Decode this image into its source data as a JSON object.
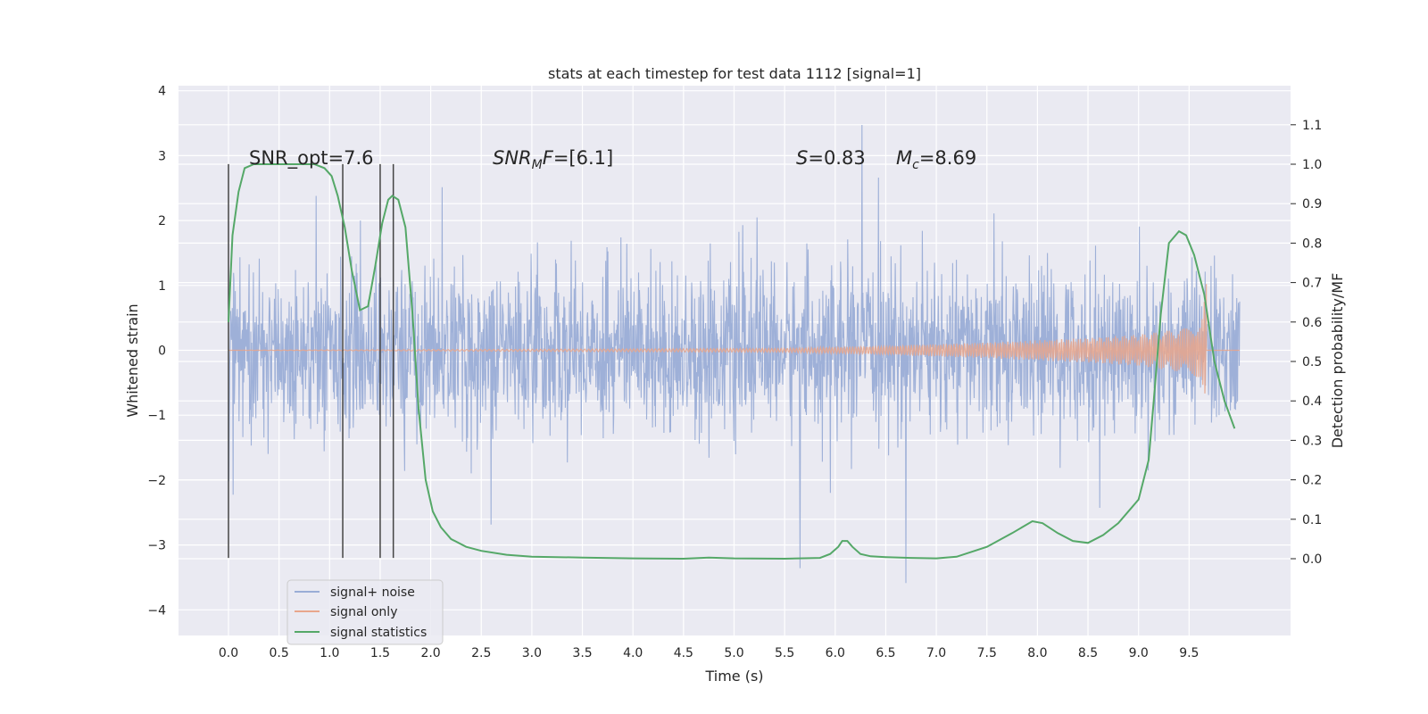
{
  "chart_data": {
    "type": "line",
    "title": "stats at each timestep for test data 1112 [signal=1]",
    "xlabel": "Time (s)",
    "ylabel": "Whitened strain",
    "ylabel_right": "Detection probability/MF",
    "xlim": [
      -0.5,
      10.5
    ],
    "ylim": [
      -4.4,
      4.1
    ],
    "ylim_right": [
      -0.2,
      1.2
    ],
    "x_ticks": [
      "0.0",
      "0.5",
      "1.0",
      "1.5",
      "2.0",
      "2.5",
      "3.0",
      "3.5",
      "4.0",
      "4.5",
      "5.0",
      "5.5",
      "6.0",
      "6.5",
      "7.0",
      "7.5",
      "8.0",
      "8.5",
      "9.0",
      "9.5"
    ],
    "y_ticks": [
      "4",
      "3",
      "2",
      "1",
      "0",
      "−1",
      "−2",
      "−3",
      "−4"
    ],
    "y_ticks_right": [
      "1.1",
      "1.0",
      "0.9",
      "0.8",
      "0.7",
      "0.6",
      "0.5",
      "0.4",
      "0.3",
      "0.2",
      "0.1",
      "0.0"
    ],
    "grid": true,
    "legend_position": "lower-left",
    "annotations": {
      "snr_opt": "SNR_opt=7.6",
      "snr_mf_base": "SNR",
      "snr_mf_sub": "M",
      "snr_mf_rest": "F=[6.1]",
      "s_var": "S",
      "s_rest": "=0.83",
      "mc_var": "M",
      "mc_sub": "c",
      "mc_rest": "=8.69"
    },
    "vertical_markers": [
      0.0,
      1.13,
      1.5,
      1.63
    ],
    "series": [
      {
        "name": "signal+ noise",
        "color": "#9aadd6",
        "x_start": 0.0,
        "x_end": 10.0,
        "approx_std": 0.55,
        "approx_range": [
          -3.7,
          3.7
        ]
      },
      {
        "name": "signal only",
        "color": "#e8a68c",
        "x_start": 0.0,
        "x_end": 9.67,
        "envelope": {
          "x": [
            0.0,
            5.5,
            6.5,
            7.5,
            8.5,
            9.0,
            9.5,
            9.62,
            9.67
          ],
          "amplitude": [
            0.0,
            0.03,
            0.07,
            0.12,
            0.19,
            0.24,
            0.35,
            0.45,
            1.05
          ]
        }
      },
      {
        "name": "signal statistics",
        "color": "#55a868",
        "x": [
          0.0,
          0.04,
          0.1,
          0.16,
          0.25,
          0.4,
          0.55,
          0.7,
          0.85,
          0.95,
          1.02,
          1.08,
          1.15,
          1.22,
          1.3,
          1.38,
          1.45,
          1.52,
          1.58,
          1.62,
          1.68,
          1.75,
          1.82,
          1.88,
          1.95,
          2.02,
          2.1,
          2.2,
          2.35,
          2.5,
          2.75,
          3.0,
          3.5,
          4.0,
          4.5,
          4.75,
          5.0,
          5.5,
          5.85,
          5.95,
          6.03,
          6.07,
          6.12,
          6.17,
          6.25,
          6.35,
          6.5,
          6.75,
          7.0,
          7.2,
          7.5,
          7.75,
          7.95,
          8.05,
          8.2,
          8.35,
          8.5,
          8.65,
          8.8,
          9.0,
          9.1,
          9.15,
          9.22,
          9.3,
          9.4,
          9.47,
          9.55,
          9.65,
          9.75,
          9.85,
          9.95
        ],
        "y": [
          0.6,
          0.82,
          0.93,
          0.99,
          1.0,
          1.0,
          1.0,
          1.0,
          1.0,
          0.99,
          0.97,
          0.92,
          0.84,
          0.73,
          0.63,
          0.64,
          0.74,
          0.85,
          0.91,
          0.92,
          0.91,
          0.84,
          0.62,
          0.38,
          0.2,
          0.12,
          0.08,
          0.05,
          0.03,
          0.02,
          0.01,
          0.005,
          0.003,
          0.001,
          0.0,
          0.003,
          0.001,
          0.0,
          0.002,
          0.012,
          0.03,
          0.045,
          0.045,
          0.03,
          0.012,
          0.006,
          0.004,
          0.002,
          0.001,
          0.005,
          0.03,
          0.065,
          0.095,
          0.09,
          0.065,
          0.045,
          0.04,
          0.06,
          0.09,
          0.15,
          0.25,
          0.4,
          0.62,
          0.8,
          0.83,
          0.82,
          0.77,
          0.67,
          0.5,
          0.4,
          0.33
        ]
      }
    ]
  }
}
